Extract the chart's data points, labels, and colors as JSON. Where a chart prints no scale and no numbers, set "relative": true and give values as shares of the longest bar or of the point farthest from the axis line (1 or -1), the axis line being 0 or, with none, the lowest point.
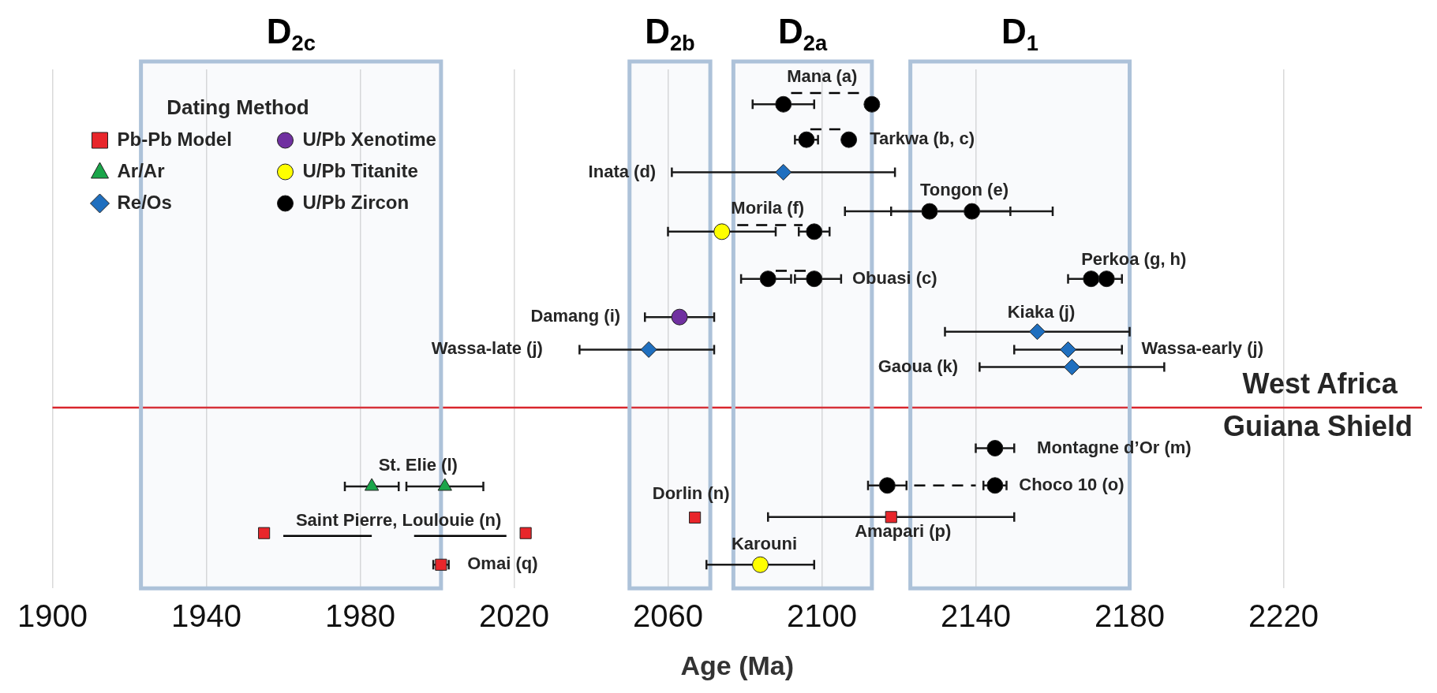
{
  "chart_data": {
    "type": "scatter",
    "xlabel": "Age (Ma)",
    "legend_title": "Dating Method",
    "legend": "top left",
    "grid": "x",
    "relative": true,
    "xlim": [
      1900,
      2256
    ],
    "xticks": [
      1900,
      1940,
      1980,
      2020,
      2060,
      2100,
      2140,
      2180,
      2220
    ],
    "series": [
      {
        "name": "Pb-Pb Model",
        "color": "#e8262b",
        "marker": "square",
        "x": [
          1955,
          2023,
          2067,
          2118,
          2001
        ],
        "values": [
          0.067,
          0.067,
          0.1,
          0.101,
          0
        ],
        "xerrors": [
          null,
          null,
          null,
          [
            2086,
            2150
          ],
          [
            1999,
            2003
          ]
        ]
      },
      {
        "name": "Ar/Ar",
        "color": "#1aa54a",
        "marker": "triangle",
        "x": [
          1983,
          2002
        ],
        "values": [
          0.166,
          0.166
        ],
        "xerrors": [
          [
            1976,
            1990
          ],
          [
            1992,
            2012
          ]
        ]
      },
      {
        "name": "Re/Os",
        "color": "#1f6fbf",
        "marker": "diamond",
        "x": [
          2090,
          2055,
          2156,
          2164,
          2165
        ],
        "values": [
          0.832,
          0.456,
          0.494,
          0.456,
          0.419
        ],
        "xerrors": [
          [
            2061,
            2119
          ],
          [
            2037,
            2072
          ],
          [
            2132,
            2180
          ],
          [
            2150,
            2178
          ],
          [
            2141,
            2189
          ]
        ]
      },
      {
        "name": "U/Pb Xenotime",
        "color": "#7030a0",
        "marker": "circle",
        "x": [
          2063
        ],
        "values": [
          0.525
        ],
        "xerrors": [
          [
            2054,
            2072
          ]
        ]
      },
      {
        "name": "U/Pb Titanite",
        "color": "#ffff00",
        "marker": "circle",
        "x": [
          2074,
          2084
        ],
        "values": [
          0.706,
          0
        ],
        "xerrors": [
          [
            2060,
            2088
          ],
          [
            2070,
            2098
          ]
        ]
      },
      {
        "name": "U/Pb Zircon",
        "color": "#000000",
        "marker": "circle",
        "x": [
          2090,
          2113,
          2096,
          2107,
          2128,
          2139,
          2098,
          2086,
          2098,
          2170,
          2174,
          2145,
          2117,
          2145
        ],
        "values": [
          0.976,
          0.976,
          0.901,
          0.901,
          0.749,
          0.749,
          0.706,
          0.606,
          0.606,
          0.606,
          0.606,
          0.247,
          0.168,
          0.168
        ],
        "xerrors": [
          [
            2082,
            2098
          ],
          null,
          [
            2093,
            2099
          ],
          null,
          [
            2106,
            2149
          ],
          [
            2118,
            2160
          ],
          [
            2094,
            2102
          ],
          [
            2079,
            2092
          ],
          [
            2093,
            2105
          ],
          [
            2164,
            2178
          ],
          null,
          [
            2140,
            2150
          ],
          [
            2112,
            2122
          ],
          [
            2142,
            2148
          ]
        ]
      },
      {
        "type": "line",
        "color": "#000000",
        "line_style": "dashed",
        "marker": "none",
        "x": [
          2092,
          2110
        ],
        "values": [
          1,
          1
        ]
      },
      {
        "type": "line",
        "color": "#000000",
        "line_style": "dashed",
        "marker": "none",
        "x": [
          2097,
          2105
        ],
        "values": [
          0.923,
          0.923
        ]
      },
      {
        "type": "line",
        "color": "#000000",
        "line_style": "dashed",
        "marker": "none",
        "x": [
          2078,
          2095
        ],
        "values": [
          0.72,
          0.72
        ]
      },
      {
        "type": "line",
        "color": "#000000",
        "line_style": "dashed",
        "marker": "none",
        "x": [
          2088,
          2096
        ],
        "values": [
          0.623,
          0.623
        ]
      },
      {
        "type": "line",
        "color": "#000000",
        "line_style": "dashed",
        "marker": "none",
        "x": [
          2124,
          2140
        ],
        "values": [
          0.168,
          0.168
        ]
      },
      {
        "type": "line",
        "color": "#000000",
        "line_style": "solid",
        "marker": "none",
        "x": [
          1960,
          1983,
          1988,
          1994,
          2018
        ],
        "values": [
          0.061,
          0.061,
          null,
          0.061,
          0.061
        ]
      }
    ],
    "bands": [
      {
        "axis": "x",
        "from": 1923,
        "to": 2001,
        "label": "D$_{2c}$",
        "color": "#adc2d9"
      },
      {
        "axis": "x",
        "from": 2050,
        "to": 2071,
        "label": "D$_{2b}$",
        "color": "#adc2d9"
      },
      {
        "axis": "x",
        "from": 2077,
        "to": 2113,
        "label": "D$_{2a}$",
        "color": "#adc2d9"
      },
      {
        "axis": "x",
        "from": 2123,
        "to": 2180,
        "label": "D$_{1}$",
        "color": "#adc2d9"
      }
    ],
    "ref_lines": [
      {
        "axis": "y",
        "value": 0.333,
        "label": "West Africa",
        "color": "#d9262c"
      }
    ],
    "annotations": [
      {
        "text": "Mana (a)",
        "x": 2090,
        "y": 0.976
      },
      {
        "text": "Tarkwa (b, c)",
        "x": 2107,
        "y": 0.901
      },
      {
        "text": "Inata (d)",
        "x": 2061,
        "y": 0.832
      },
      {
        "text": "Tongon (e)",
        "x": 2128,
        "y": 0.749
      },
      {
        "text": "Morila (f)",
        "x": 2074,
        "y": 0.706
      },
      {
        "text": "Obuasi (c)",
        "x": 2098,
        "y": 0.606
      },
      {
        "text": "Perkoa (g, h)",
        "x": 2170,
        "y": 0.606
      },
      {
        "text": "Damang (i)",
        "x": 2054,
        "y": 0.525
      },
      {
        "text": "Wassa-late (j)",
        "x": 2037,
        "y": 0.456
      },
      {
        "text": "Kiaka (j)",
        "x": 2156,
        "y": 0.494
      },
      {
        "text": "Wassa-early (j)",
        "x": 2178,
        "y": 0.456
      },
      {
        "text": "Gaoua (k)",
        "x": 2141,
        "y": 0.419
      },
      {
        "text": "Guiana Shield",
        "y": 0.333
      },
      {
        "text": "Montagne d’Or (m)",
        "x": 2145,
        "y": 0.247
      },
      {
        "text": "Choco 10 (o)",
        "x": 2145,
        "y": 0.168
      },
      {
        "text": "Dorlin (n)",
        "x": 2067,
        "y": 0.1
      },
      {
        "text": "Amapari (p)",
        "x": 2118,
        "y": 0.101
      },
      {
        "text": "Karouni",
        "x": 2084,
        "y": 0
      },
      {
        "text": "St. Elie (l)",
        "x": 2002,
        "y": 0.166
      },
      {
        "text": "Saint Pierre, Loulouie (n)",
        "x": 2023,
        "y": 0.067
      },
      {
        "text": "Omai (q)",
        "x": 2001,
        "y": 0
      }
    ]
  }
}
